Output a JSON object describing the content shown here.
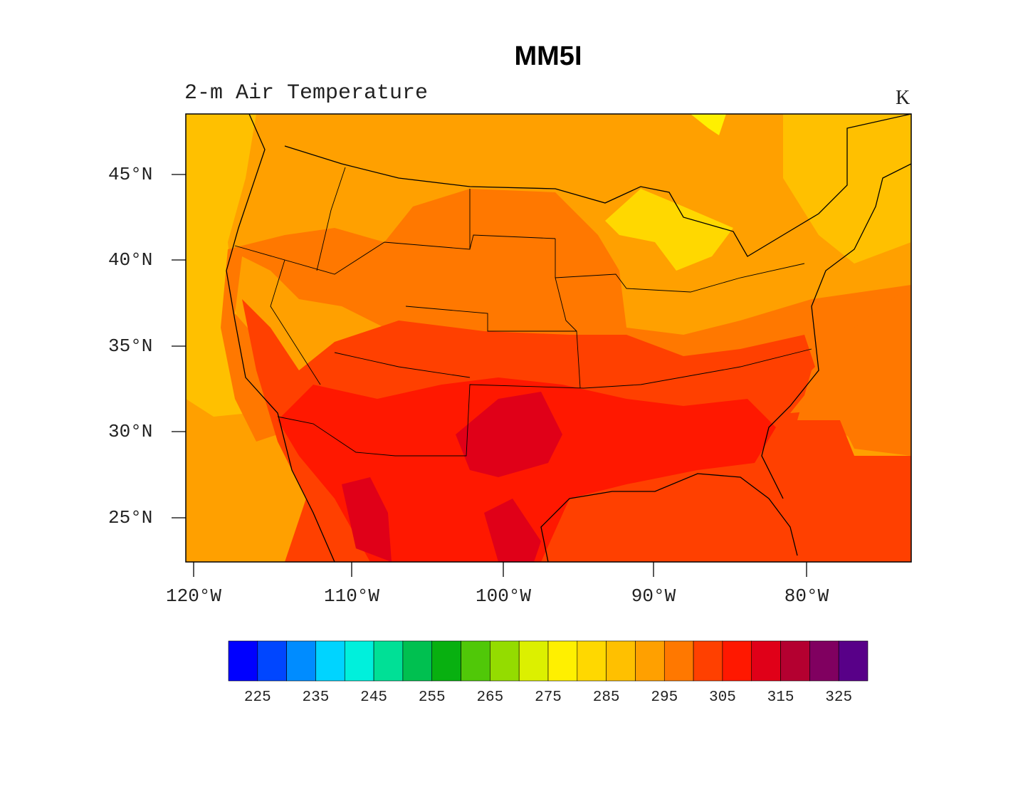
{
  "title": "MM5I",
  "subtitle": "2-m Air Temperature",
  "units": "K",
  "chart_data": {
    "type": "heatmap",
    "title": "MM5I",
    "variable": "2-m Air Temperature",
    "units": "K",
    "lat_ticks": [
      "45°N",
      "40°N",
      "35°N",
      "30°N",
      "25°N"
    ],
    "lon_ticks": [
      "120°W",
      "110°W",
      "100°W",
      "90°W",
      "80°W"
    ],
    "lat_values": [
      45,
      40,
      35,
      30,
      25
    ],
    "lon_values": [
      -120,
      -110,
      -100,
      -90,
      -80
    ],
    "colorbar": {
      "labels": [
        "225",
        "235",
        "245",
        "255",
        "265",
        "275",
        "285",
        "295",
        "305",
        "315",
        "325"
      ],
      "levels": [
        225,
        230,
        235,
        240,
        245,
        250,
        255,
        260,
        265,
        270,
        275,
        280,
        285,
        290,
        295,
        300,
        305,
        310,
        315,
        320,
        325
      ],
      "colors": [
        "#0000ff",
        "#0046ff",
        "#008cff",
        "#00d4ff",
        "#00f0dc",
        "#00e096",
        "#00c050",
        "#08b010",
        "#50c808",
        "#94dc00",
        "#dcf000",
        "#fff000",
        "#ffd800",
        "#ffc000",
        "#ffa000",
        "#ff7800",
        "#ff4000",
        "#ff1800",
        "#e00018",
        "#b40030",
        "#800060",
        "#580088"
      ]
    }
  }
}
